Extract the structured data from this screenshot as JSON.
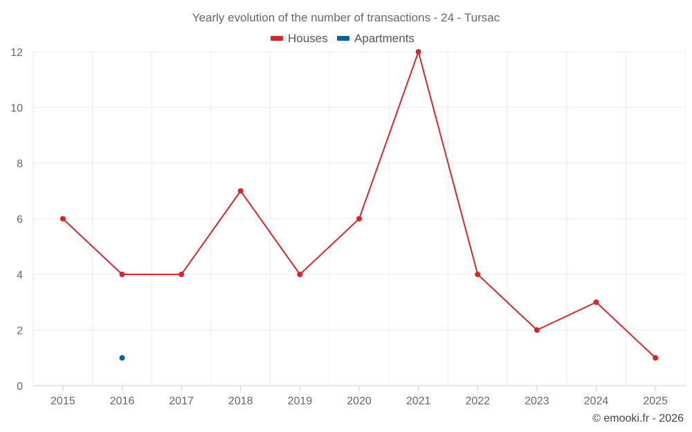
{
  "chart_data": {
    "type": "line",
    "title": "Yearly evolution of the number of transactions - 24 - Tursac",
    "categories": [
      "2015",
      "2016",
      "2017",
      "2018",
      "2019",
      "2020",
      "2021",
      "2022",
      "2023",
      "2024",
      "2025"
    ],
    "ylim": [
      0,
      12
    ],
    "yticks": [
      0,
      2,
      4,
      6,
      8,
      10,
      12
    ],
    "grid": true,
    "legend_position": "top-center",
    "series": [
      {
        "name": "Houses",
        "color": "#d62728",
        "values": [
          6,
          4,
          4,
          7,
          4,
          6,
          12,
          4,
          2,
          3,
          1
        ]
      },
      {
        "name": "Apartments",
        "color": "#08659c",
        "values": [
          null,
          1,
          null,
          null,
          null,
          null,
          null,
          null,
          null,
          null,
          null
        ]
      }
    ]
  },
  "footer": {
    "credit": "© emooki.fr - 2026"
  }
}
